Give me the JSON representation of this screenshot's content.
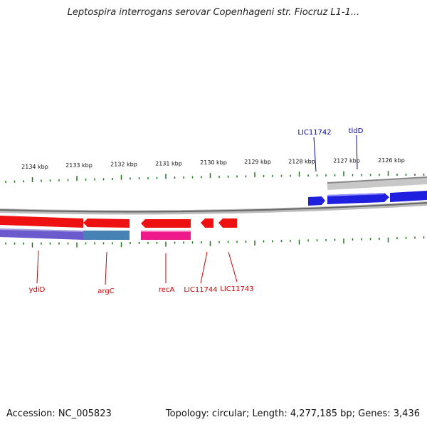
{
  "title": "Leptospira interrogans serovar Copenhageni str. Fiocruz L1-1...",
  "accession_label": "Accession: NC_005823",
  "summary": "Topology: circular; Length: 4,277,185 bp; Genes: 3,436",
  "colors": {
    "forward_gene": "#1f1fe0",
    "reverse_gene": "#ee1111",
    "reverse_gene_label": "#cc0000",
    "forward_gene_label": "#0000aa",
    "tick": "#1a7a1a",
    "backbone": "#777777",
    "band_purple": "#6a5acd",
    "band_blue": "#4682b4",
    "band_pink": "#ee1a8c"
  },
  "ticks": [
    "2134 kbp",
    "2133 kbp",
    "2132 kbp",
    "2131 kbp",
    "2130 kbp",
    "2129 kbp",
    "2128 kbp",
    "2127 kbp",
    "2126 kbp"
  ],
  "genes_forward": [
    "LIC11742",
    "tldD"
  ],
  "genes_reverse": [
    "ydiD",
    "argC",
    "recA",
    "LIC11744",
    "LIC11743"
  ]
}
